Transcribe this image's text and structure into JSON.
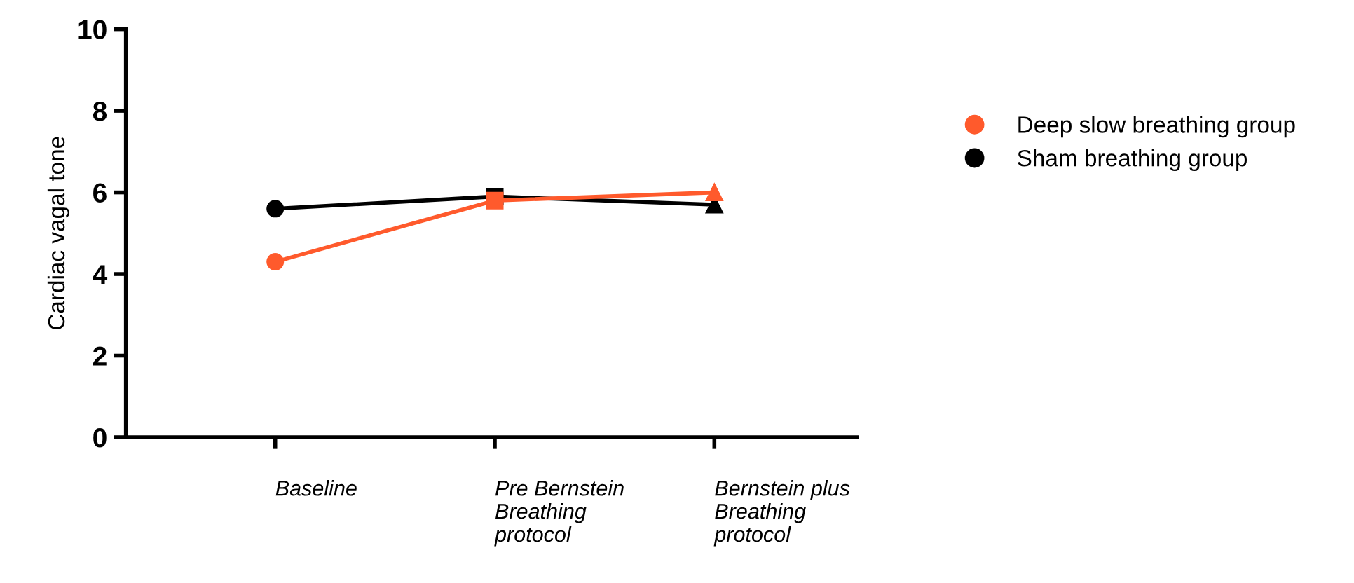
{
  "chart_data": {
    "type": "line",
    "ylabel": "Cardiac vagal tone",
    "categories": [
      "Baseline",
      "Pre Bernstein\nBreathing\nprotocol",
      "Bernstein plus\nBreathing\nprotocol"
    ],
    "series": [
      {
        "name": "Deep slow breathing group",
        "color": "#ff5a2c",
        "values": [
          4.3,
          5.8,
          6.0
        ]
      },
      {
        "name": "Sham breathing group",
        "color": "#000000",
        "values": [
          5.6,
          5.9,
          5.7
        ]
      }
    ],
    "marker": [
      "circle",
      "square",
      "triangle"
    ],
    "ylim": [
      0,
      10
    ],
    "yticks": [
      0,
      2,
      4,
      6,
      8,
      10
    ],
    "grid": false,
    "legend": "right"
  }
}
